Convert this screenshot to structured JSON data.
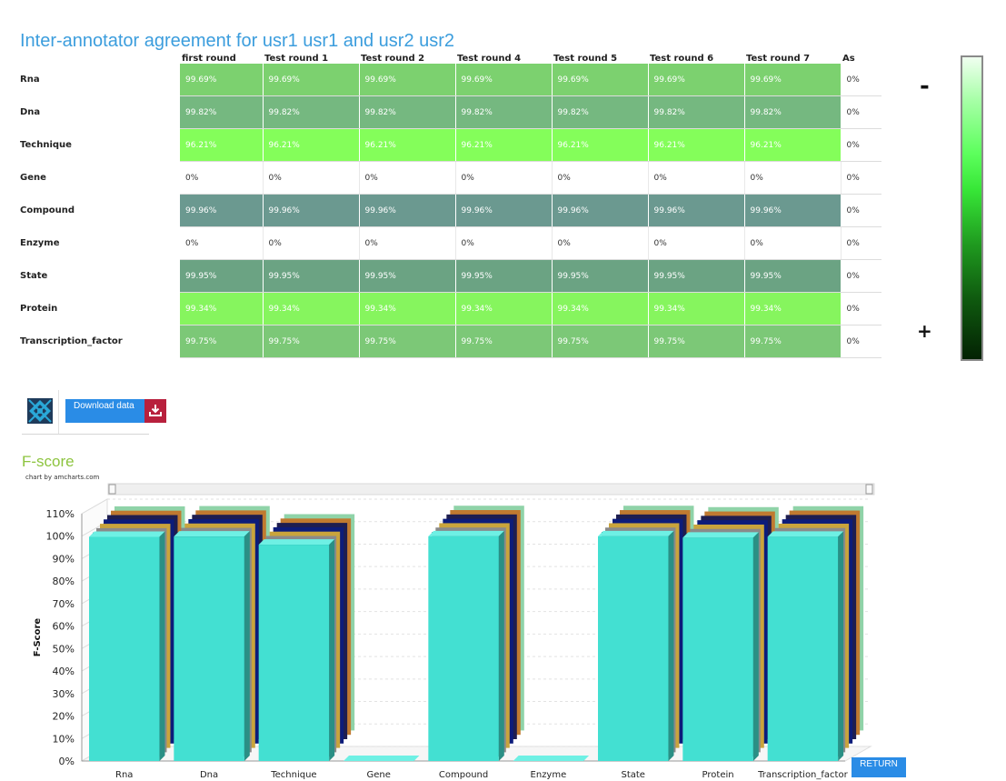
{
  "page": {
    "title": "Inter-annotator agreement for usr1 usr1 and usr2 usr2"
  },
  "table": {
    "columns": [
      "first round",
      "Test round 1",
      "Test round 2",
      "Test round 4",
      "Test round 5",
      "Test round 6",
      "Test round 7",
      "As"
    ],
    "rows": [
      {
        "label": "Rna",
        "values": [
          "99.69%",
          "99.69%",
          "99.69%",
          "99.69%",
          "99.69%",
          "99.69%",
          "99.69%",
          "0%"
        ],
        "color": "#7cd16f"
      },
      {
        "label": "Dna",
        "values": [
          "99.82%",
          "99.82%",
          "99.82%",
          "99.82%",
          "99.82%",
          "99.82%",
          "99.82%",
          "0%"
        ],
        "color": "#75b880"
      },
      {
        "label": "Technique",
        "values": [
          "96.21%",
          "96.21%",
          "96.21%",
          "96.21%",
          "96.21%",
          "96.21%",
          "96.21%",
          "0%"
        ],
        "color": "#84fe5a"
      },
      {
        "label": "Gene",
        "values": [
          "0%",
          "0%",
          "0%",
          "0%",
          "0%",
          "0%",
          "0%",
          "0%"
        ],
        "color": "#ffffff"
      },
      {
        "label": "Compound",
        "values": [
          "99.96%",
          "99.96%",
          "99.96%",
          "99.96%",
          "99.96%",
          "99.96%",
          "99.96%",
          "0%"
        ],
        "color": "#6b9990"
      },
      {
        "label": "Enzyme",
        "values": [
          "0%",
          "0%",
          "0%",
          "0%",
          "0%",
          "0%",
          "0%",
          "0%"
        ],
        "color": "#ffffff"
      },
      {
        "label": "State",
        "values": [
          "99.95%",
          "99.95%",
          "99.95%",
          "99.95%",
          "99.95%",
          "99.95%",
          "99.95%",
          "0%"
        ],
        "color": "#6ba383"
      },
      {
        "label": "Protein",
        "values": [
          "99.34%",
          "99.34%",
          "99.34%",
          "99.34%",
          "99.34%",
          "99.34%",
          "99.34%",
          "0%"
        ],
        "color": "#86f55e"
      },
      {
        "label": "Transcription_factor",
        "values": [
          "99.75%",
          "99.75%",
          "99.75%",
          "99.75%",
          "99.75%",
          "99.75%",
          "99.75%",
          "0%"
        ],
        "color": "#7cc877"
      }
    ]
  },
  "legend": {
    "minus": "-",
    "plus": "+"
  },
  "toolbar": {
    "download_label": "Download data"
  },
  "fscore": {
    "title": "F-score",
    "credit": "chart by amcharts.com"
  },
  "chart_data": {
    "type": "bar",
    "title": "F-score",
    "ylabel": "F-Score",
    "ylim": [
      0,
      110
    ],
    "y_ticks": [
      "0%",
      "10%",
      "20%",
      "30%",
      "40%",
      "50%",
      "60%",
      "70%",
      "80%",
      "90%",
      "100%",
      "110%"
    ],
    "categories": [
      "Rna",
      "Dna",
      "Technique",
      "Gene",
      "Compound",
      "Enzyme",
      "State",
      "Protein",
      "Transcription_factor"
    ],
    "values": [
      99.69,
      99.82,
      96.21,
      0,
      99.96,
      0,
      99.95,
      99.34,
      99.75
    ],
    "bar_color": "#43e0d2",
    "back_series_colors": [
      "#0d6b72",
      "#8a8a8a",
      "#c9a43c",
      "#0c1c7a",
      "#1e1e50",
      "#c07a30",
      "#8fd3a8"
    ]
  },
  "return_label": "RETURN"
}
